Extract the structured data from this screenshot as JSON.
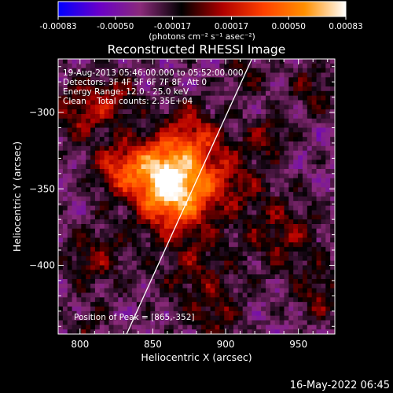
{
  "colorbar": {
    "tick_labels": [
      "-0.00083",
      "-0.00050",
      "-0.00017",
      "0.00017",
      "0.00050",
      "0.00083"
    ],
    "tick_values": [
      -0.00083,
      -0.0005,
      -0.00017,
      0.00017,
      0.0005,
      0.00083
    ],
    "range": [
      -0.00083,
      0.00083
    ],
    "unit_label": "(photons cm⁻² s⁻¹ asec⁻²)",
    "colormap": [
      "#0000ff",
      "#6a00c8",
      "#8a2a7a",
      "#000000",
      "#b00000",
      "#ff4000",
      "#ff9000",
      "#ffffff"
    ]
  },
  "chart_data": {
    "type": "heatmap",
    "title": "Reconstructed RHESSI Image",
    "xlabel": "Heliocentric X (arcsec)",
    "ylabel": "Heliocentric Y (arcsec)",
    "xlim": [
      785,
      975
    ],
    "ylim": [
      -445,
      -265
    ],
    "xticks": [
      800,
      850,
      900,
      950
    ],
    "yticks": [
      -300,
      -350,
      -400
    ],
    "value_range": [
      -0.00083,
      0.00083
    ],
    "peak": [
      865,
      -352
    ],
    "limb_line": {
      "x": [
        832,
        918
      ],
      "y": [
        -445,
        -265
      ]
    },
    "annotations": [
      "19-Aug-2013 05:46:00.000 to 05:52:00.000",
      "Detectors: 3F 4F 5F 6F 7F 8F, Att 0",
      "Energy Range: 12.0 - 25.0 keV",
      "Clean    Total counts: 2.35E+04"
    ],
    "peak_label": "Position of Peak = [865,-352]"
  },
  "footer": {
    "timestamp": "16-May-2022 06:45"
  }
}
